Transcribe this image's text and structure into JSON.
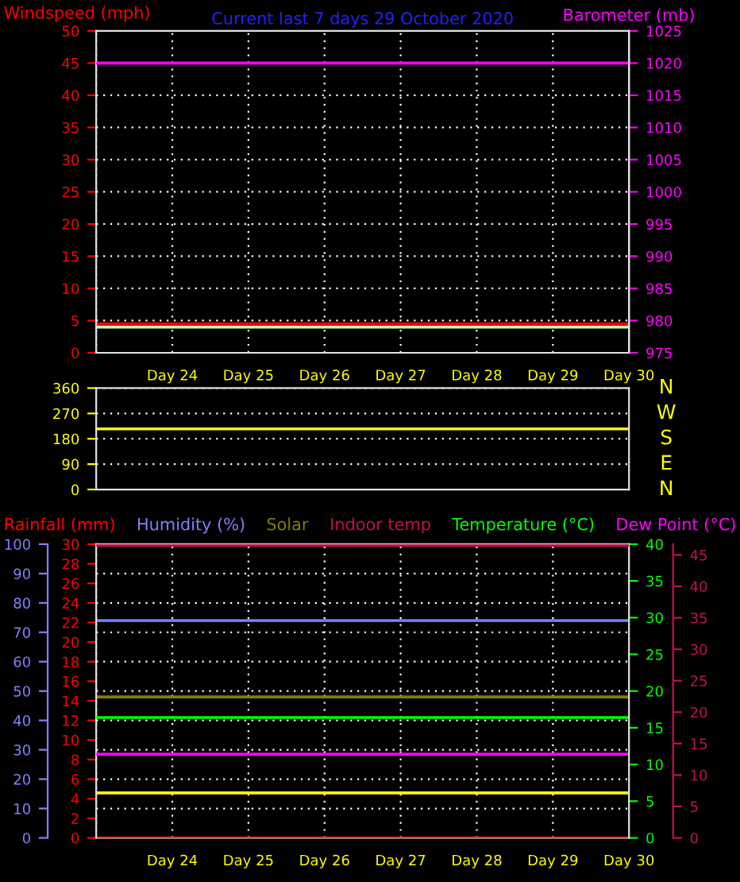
{
  "chart_data": [
    {
      "type": "line",
      "title": "Current last 7 days 29 October 2020",
      "ylabel": "Windspeed (mph)",
      "y2label": "Barometer (mb)",
      "categories": [
        null,
        "Day 24",
        "Day 25",
        "Day 26",
        "Day 27",
        "Day 28",
        "Day 29",
        "Day 30"
      ],
      "ylim": [
        0,
        50
      ],
      "yticks": [
        0,
        5,
        10,
        15,
        20,
        25,
        30,
        35,
        40,
        45,
        50
      ],
      "y2lim": [
        975,
        1025
      ],
      "y2ticks": [
        975,
        980,
        985,
        990,
        995,
        1000,
        1005,
        1010,
        1015,
        1020,
        1025
      ],
      "grid": true,
      "series": [
        {
          "color": "#ff0000",
          "values": [
            4.5,
            4.5,
            4.5,
            4.5,
            4.5,
            4.5,
            4.5,
            4.5
          ]
        },
        {
          "color": "#c0ffc0",
          "values": [
            4,
            4,
            4,
            4,
            4,
            4,
            4,
            4
          ]
        },
        {
          "color": "#ff00ff",
          "axis": "y2",
          "values": [
            1020,
            1020,
            1020,
            1020,
            1020,
            1020,
            1020,
            1020
          ]
        }
      ]
    },
    {
      "type": "line",
      "categories": [
        null,
        null,
        null,
        null,
        null,
        null,
        null,
        null
      ],
      "ylim": [
        0,
        360
      ],
      "yticks": [
        0,
        90,
        180,
        270,
        360
      ],
      "grid": "y",
      "annotations": [
        "N",
        "W",
        "S",
        "E",
        "N"
      ],
      "series": [
        {
          "color": "#ffff00",
          "values": [
            215,
            215,
            215,
            215,
            215,
            215,
            215,
            215
          ]
        }
      ]
    },
    {
      "type": "line",
      "categories": [
        null,
        "Day 24",
        "Day 25",
        "Day 26",
        "Day 27",
        "Day 28",
        "Day 29",
        "Day 30"
      ],
      "ylim": [
        0,
        100
      ],
      "yticks": [
        0,
        10,
        20,
        30,
        40,
        50,
        60,
        70,
        80,
        90,
        100
      ],
      "y2lim": [
        0,
        30
      ],
      "y2ticks": [
        0,
        2,
        4,
        6,
        8,
        10,
        12,
        14,
        16,
        18,
        20,
        22,
        24,
        26,
        28,
        30
      ],
      "grid": true,
      "legend": "top",
      "series": [
        {
          "name": "Rainfall (mm)",
          "color": "#ff0000",
          "axis": "y2",
          "values": [
            0,
            0,
            0,
            0,
            0,
            0,
            0,
            0
          ]
        },
        {
          "name": "Humidity (%)",
          "color": "#8080ff",
          "values": [
            74,
            74,
            74,
            74,
            74,
            74,
            74,
            74
          ]
        },
        {
          "name": "Solar",
          "color": "#808000",
          "axis": "y2",
          "values": [
            14.4,
            14.4,
            14.4,
            14.4,
            14.4,
            14.4,
            14.4,
            14.4
          ]
        },
        {
          "color": "#ffff00",
          "axis": "y2",
          "values": [
            4.6,
            4.6,
            4.6,
            4.6,
            4.6,
            4.6,
            4.6,
            4.6
          ]
        }
      ]
    },
    {
      "type": "line",
      "categories": [
        null,
        null,
        null,
        null,
        null,
        null,
        null,
        null
      ],
      "ylim": [
        0,
        40
      ],
      "yticks": [
        0,
        5,
        10,
        15,
        20,
        25,
        30,
        35,
        40
      ],
      "y2lim": [
        0,
        46.7
      ],
      "y2ticks": [
        0,
        5,
        10,
        15,
        20,
        25,
        30,
        35,
        40,
        45
      ],
      "legend": "top",
      "series": [
        {
          "name": "Indoor temp",
          "color": "#c01050",
          "axis": "y2",
          "values": [
            46.5,
            46.5,
            46.5,
            46.5,
            46.5,
            46.5,
            46.5,
            46.5
          ]
        },
        {
          "name": "Temperature (°C)",
          "color": "#00ff00",
          "values": [
            16.4,
            16.4,
            16.4,
            16.4,
            16.4,
            16.4,
            16.4,
            16.4
          ]
        },
        {
          "name": "Dew Point (°C)",
          "color": "#ff00ff",
          "values": [
            11.4,
            11.4,
            11.4,
            11.4,
            11.4,
            11.4,
            11.4,
            11.4
          ]
        }
      ]
    }
  ]
}
